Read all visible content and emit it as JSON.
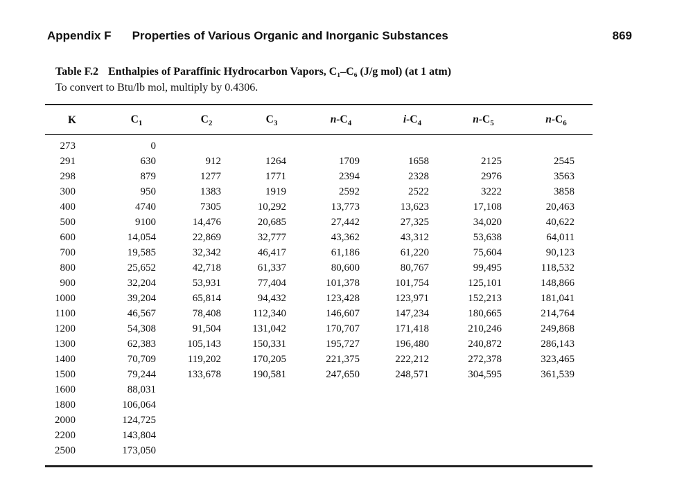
{
  "page": {
    "header": {
      "appendix_label": "Appendix F",
      "title": "Properties of Various Organic and Inorganic Substances",
      "page_number": "869"
    },
    "table": {
      "label": "Table F.2",
      "title": "Enthalpies of Paraffinic Hydrocarbon Vapors, C₁–C₆ (J/g mol) (at 1 atm)",
      "subtitle": "To convert to Btu/lb mol, multiply by 0.4306.",
      "columns": [
        {
          "id": "k",
          "italic": "",
          "base": "K",
          "sub": ""
        },
        {
          "id": "c1",
          "italic": "",
          "base": "C",
          "sub": "1"
        },
        {
          "id": "c2",
          "italic": "",
          "base": "C",
          "sub": "2"
        },
        {
          "id": "c3",
          "italic": "",
          "base": "C",
          "sub": "3"
        },
        {
          "id": "n-c4",
          "italic": "n-",
          "base": "C",
          "sub": "4"
        },
        {
          "id": "i-c4",
          "italic": "i-",
          "base": "C",
          "sub": "4"
        },
        {
          "id": "n-c5",
          "italic": "n-",
          "base": "C",
          "sub": "5"
        },
        {
          "id": "n-c6",
          "italic": "n-",
          "base": "C",
          "sub": "6"
        }
      ],
      "rows": [
        [
          "273",
          "0",
          "",
          "",
          "",
          "",
          "",
          ""
        ],
        [
          "291",
          "630",
          "912",
          "1264",
          "1709",
          "1658",
          "2125",
          "2545"
        ],
        [
          "298",
          "879",
          "1277",
          "1771",
          "2394",
          "2328",
          "2976",
          "3563"
        ],
        [
          "300",
          "950",
          "1383",
          "1919",
          "2592",
          "2522",
          "3222",
          "3858"
        ],
        [
          "400",
          "4740",
          "7305",
          "10,292",
          "13,773",
          "13,623",
          "17,108",
          "20,463"
        ],
        [
          "500",
          "9100",
          "14,476",
          "20,685",
          "27,442",
          "27,325",
          "34,020",
          "40,622"
        ],
        [
          "600",
          "14,054",
          "22,869",
          "32,777",
          "43,362",
          "43,312",
          "53,638",
          "64,011"
        ],
        [
          "700",
          "19,585",
          "32,342",
          "46,417",
          "61,186",
          "61,220",
          "75,604",
          "90,123"
        ],
        [
          "800",
          "25,652",
          "42,718",
          "61,337",
          "80,600",
          "80,767",
          "99,495",
          "118,532"
        ],
        [
          "900",
          "32,204",
          "53,931",
          "77,404",
          "101,378",
          "101,754",
          "125,101",
          "148,866"
        ],
        [
          "1000",
          "39,204",
          "65,814",
          "94,432",
          "123,428",
          "123,971",
          "152,213",
          "181,041"
        ],
        [
          "1100",
          "46,567",
          "78,408",
          "112,340",
          "146,607",
          "147,234",
          "180,665",
          "214,764"
        ],
        [
          "1200",
          "54,308",
          "91,504",
          "131,042",
          "170,707",
          "171,418",
          "210,246",
          "249,868"
        ],
        [
          "1300",
          "62,383",
          "105,143",
          "150,331",
          "195,727",
          "196,480",
          "240,872",
          "286,143"
        ],
        [
          "1400",
          "70,709",
          "119,202",
          "170,205",
          "221,375",
          "222,212",
          "272,378",
          "323,465"
        ],
        [
          "1500",
          "79,244",
          "133,678",
          "190,581",
          "247,650",
          "248,571",
          "304,595",
          "361,539"
        ],
        [
          "1600",
          "88,031",
          "",
          "",
          "",
          "",
          "",
          ""
        ],
        [
          "1800",
          "106,064",
          "",
          "",
          "",
          "",
          "",
          ""
        ],
        [
          "2000",
          "124,725",
          "",
          "",
          "",
          "",
          "",
          ""
        ],
        [
          "2200",
          "143,804",
          "",
          "",
          "",
          "",
          "",
          ""
        ],
        [
          "2500",
          "173,050",
          "",
          "",
          "",
          "",
          "",
          ""
        ]
      ]
    }
  }
}
